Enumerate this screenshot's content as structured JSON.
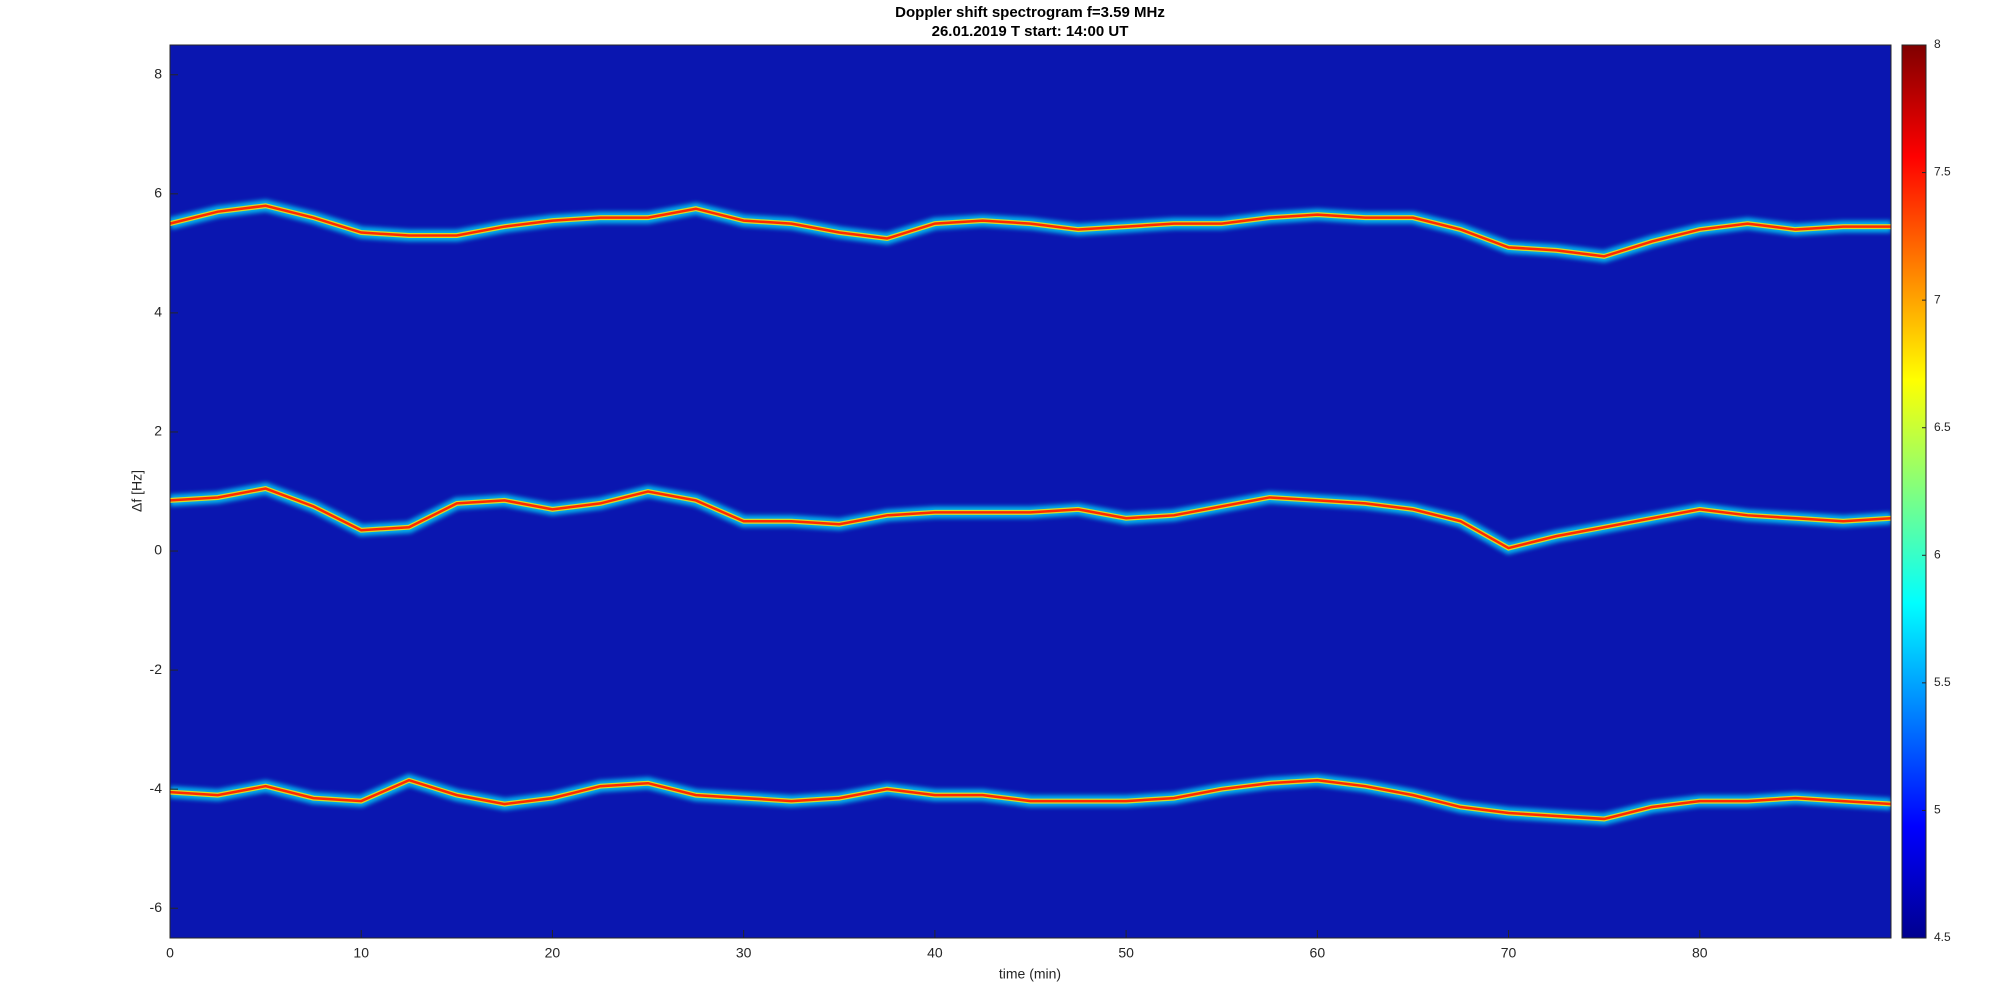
{
  "chart_data": {
    "type": "spectrogram",
    "title": "Doppler shift spectrogram f=3.59 MHz",
    "subtitle": "26.01.2019   T start: 14:00 UT",
    "x_label": "time (min)",
    "y_label": "Δf [Hz]",
    "xlim": [
      0,
      90
    ],
    "xticks": [
      0,
      10,
      20,
      30,
      40,
      50,
      60,
      70,
      80
    ],
    "ylim": [
      -6.5,
      8.5
    ],
    "yticks": [
      -6,
      -4,
      -2,
      0,
      2,
      4,
      6,
      8
    ],
    "clim": [
      4.5,
      8
    ],
    "cticks": [
      4.5,
      5,
      5.5,
      6,
      6.5,
      7,
      7.5,
      8
    ],
    "colormap": [
      "#00008f",
      "#0000ff",
      "#0080ff",
      "#00ffff",
      "#80ff80",
      "#ffff00",
      "#ff8000",
      "#ff0000",
      "#800000"
    ],
    "background_color": "#0a16b0",
    "x": [
      0,
      2.5,
      5,
      7.5,
      10,
      12.5,
      15,
      17.5,
      20,
      22.5,
      25,
      27.5,
      30,
      32.5,
      35,
      37.5,
      40,
      42.5,
      45,
      47.5,
      50,
      52.5,
      55,
      57.5,
      60,
      62.5,
      65,
      67.5,
      70,
      72.5,
      75,
      77.5,
      80,
      82.5,
      85,
      87.5,
      90
    ],
    "series": [
      {
        "color": "#ff2a00",
        "values": [
          5.5,
          5.7,
          5.8,
          5.6,
          5.35,
          5.3,
          5.3,
          5.45,
          5.55,
          5.6,
          5.6,
          5.75,
          5.55,
          5.5,
          5.35,
          5.25,
          5.5,
          5.55,
          5.5,
          5.4,
          5.45,
          5.5,
          5.5,
          5.6,
          5.65,
          5.6,
          5.6,
          5.4,
          5.1,
          5.05,
          4.95,
          5.2,
          5.4,
          5.5,
          5.4,
          5.45,
          5.45
        ]
      },
      {
        "color": "#ff2a00",
        "values": [
          0.85,
          0.9,
          1.05,
          0.75,
          0.35,
          0.4,
          0.8,
          0.85,
          0.7,
          0.8,
          1.0,
          0.85,
          0.5,
          0.5,
          0.45,
          0.6,
          0.65,
          0.65,
          0.65,
          0.7,
          0.55,
          0.6,
          0.75,
          0.9,
          0.85,
          0.8,
          0.7,
          0.5,
          0.05,
          0.25,
          0.4,
          0.55,
          0.7,
          0.6,
          0.55,
          0.5,
          0.55
        ]
      },
      {
        "color": "#ff2a00",
        "values": [
          -4.05,
          -4.1,
          -3.95,
          -4.15,
          -4.2,
          -3.85,
          -4.1,
          -4.25,
          -4.15,
          -3.95,
          -3.9,
          -4.1,
          -4.15,
          -4.2,
          -4.15,
          -4.0,
          -4.1,
          -4.1,
          -4.2,
          -4.2,
          -4.2,
          -4.15,
          -4.0,
          -3.9,
          -3.85,
          -3.95,
          -4.1,
          -4.3,
          -4.4,
          -4.45,
          -4.5,
          -4.3,
          -4.2,
          -4.2,
          -4.15,
          -4.2,
          -4.25
        ]
      }
    ]
  }
}
